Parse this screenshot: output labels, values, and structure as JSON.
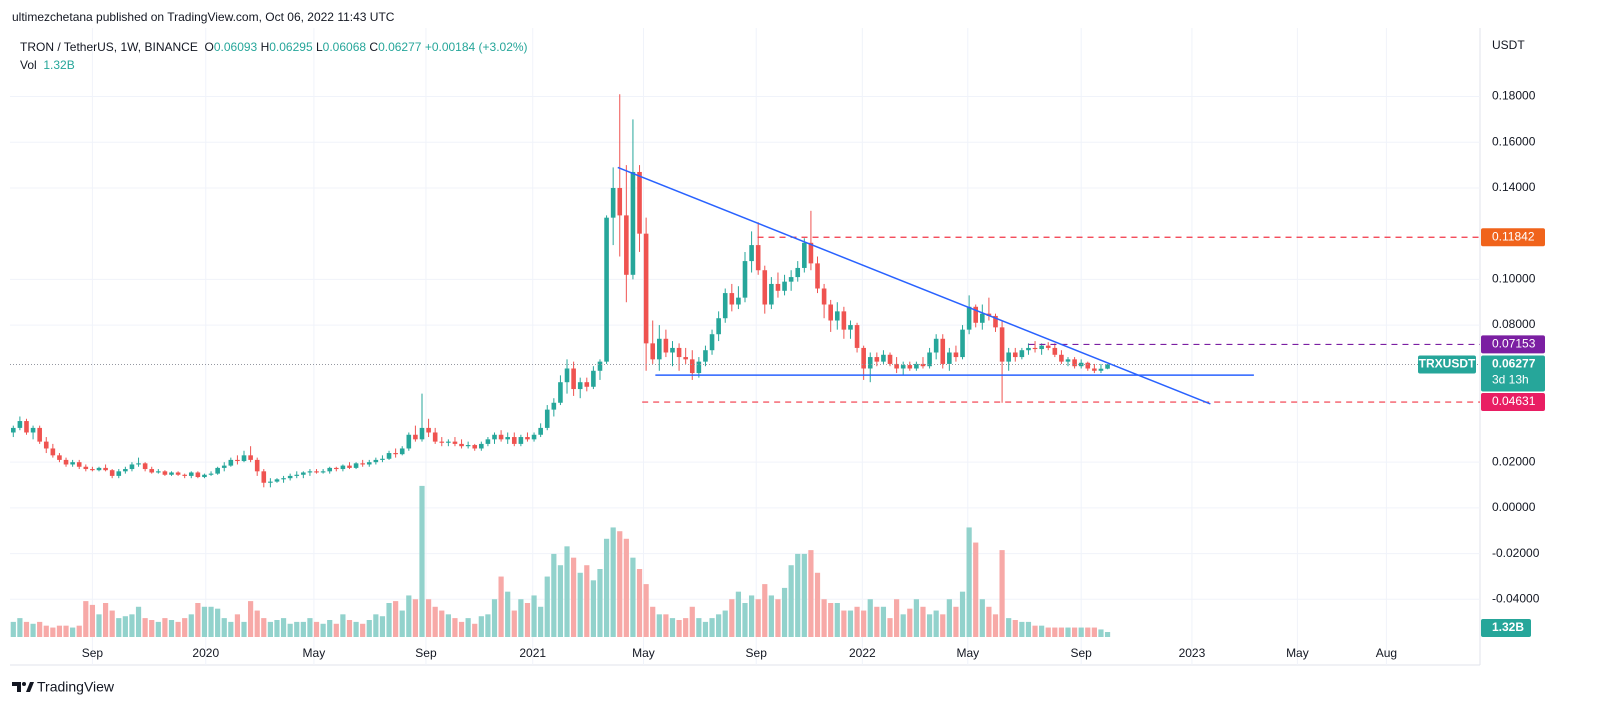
{
  "header": "ultimezchetana published on TradingView.com, Oct 06, 2022 11:43 UTC",
  "footer": "TradingView",
  "chart_data": {
    "type": "candlestick",
    "symbol_info": "TRON / TetherUS, 1W, BINANCE",
    "ohlc": [
      {
        "key": "O",
        "value": "0.06093"
      },
      {
        "key": "H",
        "value": "0.06295"
      },
      {
        "key": "L",
        "value": "0.06068"
      },
      {
        "key": "C",
        "value": "0.06277"
      }
    ],
    "change": "+0.00184 (+3.02%)",
    "volume_key": "Vol",
    "currency": "USDT",
    "up_color": "#26a69a",
    "down_color": "#ef5350",
    "volume_up_color": "#92d2cc",
    "volume_down_color": "#f7a9a7",
    "xlim": [
      -0.5,
      222.5
    ],
    "ylim": [
      -0.06,
      0.21
    ],
    "volume_ylim": [
      0,
      45
    ],
    "grid": true,
    "yticks": [
      {
        "value": 0.18,
        "label": "0.18000"
      },
      {
        "value": 0.16,
        "label": "0.16000"
      },
      {
        "value": 0.14,
        "label": "0.14000"
      },
      {
        "value": 0.1,
        "label": "0.10000"
      },
      {
        "value": 0.08,
        "label": "0.08000"
      },
      {
        "value": 0.02,
        "label": "0.02000"
      },
      {
        "value": 0,
        "label": "0.00000"
      },
      {
        "value": -0.02,
        "label": "-0.02000"
      },
      {
        "value": -0.04,
        "label": "-0.04000"
      }
    ],
    "xticks": [
      {
        "value": 12,
        "label": "Sep"
      },
      {
        "value": 29.2,
        "label": "2020"
      },
      {
        "value": 45.6,
        "label": "May"
      },
      {
        "value": 62.6,
        "label": "Sep"
      },
      {
        "value": 78.8,
        "label": "2021"
      },
      {
        "value": 95.6,
        "label": "May"
      },
      {
        "value": 112.7,
        "label": "Sep"
      },
      {
        "value": 128.8,
        "label": "2022"
      },
      {
        "value": 144.8,
        "label": "May"
      },
      {
        "value": 162,
        "label": "Sep"
      },
      {
        "value": 178.8,
        "label": "2023"
      },
      {
        "value": 194.8,
        "label": "May"
      },
      {
        "value": 208.3,
        "label": "Aug"
      }
    ],
    "candles": [
      [
        0.033,
        0.036,
        0.031,
        0.035
      ],
      [
        0.035,
        0.04,
        0.034,
        0.038
      ],
      [
        0.038,
        0.039,
        0.032,
        0.033
      ],
      [
        0.033,
        0.036,
        0.03,
        0.035
      ],
      [
        0.035,
        0.036,
        0.028,
        0.029
      ],
      [
        0.029,
        0.031,
        0.024,
        0.026
      ],
      [
        0.026,
        0.028,
        0.022,
        0.023
      ],
      [
        0.023,
        0.024,
        0.02,
        0.021
      ],
      [
        0.021,
        0.022,
        0.018,
        0.019
      ],
      [
        0.019,
        0.021,
        0.018,
        0.02
      ],
      [
        0.02,
        0.021,
        0.017,
        0.018
      ],
      [
        0.018,
        0.019,
        0.016,
        0.017
      ],
      [
        0.017,
        0.018,
        0.016,
        0.0165
      ],
      [
        0.0165,
        0.018,
        0.016,
        0.0175
      ],
      [
        0.0175,
        0.019,
        0.016,
        0.0165
      ],
      [
        0.0165,
        0.017,
        0.013,
        0.014
      ],
      [
        0.014,
        0.017,
        0.013,
        0.016
      ],
      [
        0.016,
        0.018,
        0.015,
        0.017
      ],
      [
        0.017,
        0.02,
        0.016,
        0.019
      ],
      [
        0.019,
        0.022,
        0.018,
        0.0195
      ],
      [
        0.0195,
        0.02,
        0.016,
        0.017
      ],
      [
        0.017,
        0.018,
        0.015,
        0.0155
      ],
      [
        0.0155,
        0.017,
        0.015,
        0.016
      ],
      [
        0.016,
        0.0165,
        0.014,
        0.0145
      ],
      [
        0.0145,
        0.016,
        0.014,
        0.0155
      ],
      [
        0.0155,
        0.016,
        0.014,
        0.0145
      ],
      [
        0.0145,
        0.015,
        0.013,
        0.014
      ],
      [
        0.014,
        0.016,
        0.013,
        0.0155
      ],
      [
        0.0155,
        0.016,
        0.013,
        0.0135
      ],
      [
        0.0135,
        0.015,
        0.013,
        0.0145
      ],
      [
        0.0145,
        0.016,
        0.014,
        0.015
      ],
      [
        0.015,
        0.018,
        0.0145,
        0.0175
      ],
      [
        0.0175,
        0.02,
        0.016,
        0.0185
      ],
      [
        0.0185,
        0.022,
        0.018,
        0.021
      ],
      [
        0.021,
        0.023,
        0.019,
        0.0205
      ],
      [
        0.0205,
        0.025,
        0.02,
        0.023
      ],
      [
        0.023,
        0.027,
        0.02,
        0.021
      ],
      [
        0.021,
        0.022,
        0.014,
        0.016
      ],
      [
        0.016,
        0.017,
        0.009,
        0.011
      ],
      [
        0.011,
        0.013,
        0.009,
        0.0115
      ],
      [
        0.0115,
        0.013,
        0.011,
        0.0125
      ],
      [
        0.0125,
        0.014,
        0.011,
        0.013
      ],
      [
        0.013,
        0.015,
        0.012,
        0.014
      ],
      [
        0.014,
        0.016,
        0.013,
        0.0145
      ],
      [
        0.0145,
        0.016,
        0.013,
        0.0155
      ],
      [
        0.0155,
        0.017,
        0.014,
        0.016
      ],
      [
        0.016,
        0.017,
        0.015,
        0.0155
      ],
      [
        0.0155,
        0.017,
        0.015,
        0.016
      ],
      [
        0.016,
        0.018,
        0.015,
        0.0175
      ],
      [
        0.0175,
        0.018,
        0.016,
        0.017
      ],
      [
        0.017,
        0.019,
        0.016,
        0.0185
      ],
      [
        0.0185,
        0.02,
        0.017,
        0.0175
      ],
      [
        0.0175,
        0.02,
        0.017,
        0.0195
      ],
      [
        0.0195,
        0.021,
        0.018,
        0.019
      ],
      [
        0.019,
        0.021,
        0.018,
        0.02
      ],
      [
        0.02,
        0.022,
        0.019,
        0.021
      ],
      [
        0.021,
        0.023,
        0.02,
        0.0215
      ],
      [
        0.0215,
        0.025,
        0.021,
        0.024
      ],
      [
        0.024,
        0.026,
        0.022,
        0.0235
      ],
      [
        0.0235,
        0.027,
        0.023,
        0.026
      ],
      [
        0.026,
        0.033,
        0.025,
        0.032
      ],
      [
        0.032,
        0.036,
        0.029,
        0.03
      ],
      [
        0.03,
        0.05,
        0.029,
        0.035
      ],
      [
        0.035,
        0.039,
        0.031,
        0.033
      ],
      [
        0.033,
        0.035,
        0.028,
        0.029
      ],
      [
        0.029,
        0.031,
        0.027,
        0.0285
      ],
      [
        0.0285,
        0.03,
        0.027,
        0.029
      ],
      [
        0.029,
        0.031,
        0.027,
        0.028
      ],
      [
        0.028,
        0.03,
        0.026,
        0.027
      ],
      [
        0.027,
        0.029,
        0.026,
        0.0275
      ],
      [
        0.0275,
        0.028,
        0.025,
        0.026
      ],
      [
        0.026,
        0.029,
        0.025,
        0.028
      ],
      [
        0.028,
        0.031,
        0.027,
        0.03
      ],
      [
        0.03,
        0.033,
        0.028,
        0.032
      ],
      [
        0.032,
        0.034,
        0.029,
        0.03
      ],
      [
        0.03,
        0.033,
        0.028,
        0.031
      ],
      [
        0.031,
        0.033,
        0.027,
        0.028
      ],
      [
        0.028,
        0.032,
        0.027,
        0.031
      ],
      [
        0.031,
        0.033,
        0.029,
        0.03
      ],
      [
        0.03,
        0.033,
        0.029,
        0.032
      ],
      [
        0.032,
        0.037,
        0.031,
        0.035
      ],
      [
        0.035,
        0.045,
        0.034,
        0.043
      ],
      [
        0.043,
        0.048,
        0.04,
        0.046
      ],
      [
        0.046,
        0.058,
        0.045,
        0.055
      ],
      [
        0.055,
        0.065,
        0.05,
        0.061
      ],
      [
        0.061,
        0.064,
        0.049,
        0.052
      ],
      [
        0.052,
        0.057,
        0.048,
        0.055
      ],
      [
        0.055,
        0.057,
        0.051,
        0.053
      ],
      [
        0.053,
        0.062,
        0.052,
        0.06
      ],
      [
        0.06,
        0.065,
        0.056,
        0.064
      ],
      [
        0.064,
        0.128,
        0.063,
        0.127
      ],
      [
        0.127,
        0.149,
        0.115,
        0.14
      ],
      [
        0.14,
        0.181,
        0.11,
        0.128
      ],
      [
        0.128,
        0.15,
        0.09,
        0.102
      ],
      [
        0.102,
        0.17,
        0.1,
        0.147
      ],
      [
        0.147,
        0.15,
        0.112,
        0.12
      ],
      [
        0.12,
        0.127,
        0.06,
        0.072
      ],
      [
        0.072,
        0.082,
        0.063,
        0.065
      ],
      [
        0.065,
        0.08,
        0.06,
        0.074
      ],
      [
        0.074,
        0.078,
        0.066,
        0.068
      ],
      [
        0.068,
        0.073,
        0.062,
        0.07
      ],
      [
        0.07,
        0.072,
        0.06,
        0.066
      ],
      [
        0.066,
        0.07,
        0.063,
        0.065
      ],
      [
        0.065,
        0.069,
        0.056,
        0.059
      ],
      [
        0.059,
        0.066,
        0.057,
        0.064
      ],
      [
        0.064,
        0.071,
        0.062,
        0.069
      ],
      [
        0.069,
        0.078,
        0.067,
        0.076
      ],
      [
        0.076,
        0.086,
        0.073,
        0.083
      ],
      [
        0.083,
        0.096,
        0.081,
        0.094
      ],
      [
        0.094,
        0.098,
        0.086,
        0.089
      ],
      [
        0.089,
        0.097,
        0.087,
        0.092
      ],
      [
        0.092,
        0.112,
        0.09,
        0.108
      ],
      [
        0.108,
        0.121,
        0.103,
        0.115
      ],
      [
        0.115,
        0.125,
        0.102,
        0.104
      ],
      [
        0.104,
        0.106,
        0.085,
        0.089
      ],
      [
        0.089,
        0.101,
        0.087,
        0.098
      ],
      [
        0.098,
        0.103,
        0.092,
        0.095
      ],
      [
        0.095,
        0.102,
        0.093,
        0.099
      ],
      [
        0.099,
        0.104,
        0.095,
        0.101
      ],
      [
        0.101,
        0.108,
        0.099,
        0.105
      ],
      [
        0.105,
        0.118,
        0.103,
        0.116
      ],
      [
        0.116,
        0.13,
        0.104,
        0.107
      ],
      [
        0.107,
        0.11,
        0.094,
        0.096
      ],
      [
        0.096,
        0.098,
        0.083,
        0.089
      ],
      [
        0.089,
        0.091,
        0.077,
        0.082
      ],
      [
        0.082,
        0.09,
        0.078,
        0.086
      ],
      [
        0.086,
        0.088,
        0.074,
        0.078
      ],
      [
        0.078,
        0.082,
        0.074,
        0.08
      ],
      [
        0.08,
        0.081,
        0.068,
        0.07
      ],
      [
        0.07,
        0.071,
        0.056,
        0.061
      ],
      [
        0.061,
        0.068,
        0.055,
        0.066
      ],
      [
        0.066,
        0.068,
        0.062,
        0.064
      ],
      [
        0.064,
        0.069,
        0.063,
        0.067
      ],
      [
        0.067,
        0.068,
        0.062,
        0.063
      ],
      [
        0.063,
        0.066,
        0.059,
        0.061
      ],
      [
        0.061,
        0.064,
        0.058,
        0.0625
      ],
      [
        0.0625,
        0.064,
        0.06,
        0.061
      ],
      [
        0.061,
        0.064,
        0.06,
        0.063
      ],
      [
        0.063,
        0.066,
        0.061,
        0.062
      ],
      [
        0.062,
        0.07,
        0.061,
        0.068
      ],
      [
        0.068,
        0.076,
        0.065,
        0.074
      ],
      [
        0.074,
        0.076,
        0.061,
        0.063
      ],
      [
        0.063,
        0.07,
        0.06,
        0.068
      ],
      [
        0.068,
        0.071,
        0.064,
        0.066
      ],
      [
        0.066,
        0.08,
        0.065,
        0.078
      ],
      [
        0.078,
        0.093,
        0.076,
        0.088
      ],
      [
        0.088,
        0.089,
        0.079,
        0.081
      ],
      [
        0.081,
        0.089,
        0.078,
        0.085
      ],
      [
        0.085,
        0.092,
        0.082,
        0.084
      ],
      [
        0.084,
        0.085,
        0.077,
        0.079
      ],
      [
        0.079,
        0.082,
        0.046,
        0.064
      ],
      [
        0.064,
        0.07,
        0.06,
        0.068
      ],
      [
        0.068,
        0.07,
        0.064,
        0.066
      ],
      [
        0.066,
        0.07,
        0.065,
        0.069
      ],
      [
        0.069,
        0.072,
        0.067,
        0.07
      ],
      [
        0.07,
        0.073,
        0.068,
        0.0695
      ],
      [
        0.0695,
        0.072,
        0.067,
        0.071
      ],
      [
        0.071,
        0.0725,
        0.069,
        0.07
      ],
      [
        0.07,
        0.072,
        0.066,
        0.067
      ],
      [
        0.067,
        0.069,
        0.063,
        0.064
      ],
      [
        0.064,
        0.066,
        0.062,
        0.065
      ],
      [
        0.065,
        0.066,
        0.061,
        0.062
      ],
      [
        0.062,
        0.065,
        0.061,
        0.0635
      ],
      [
        0.0635,
        0.064,
        0.06,
        0.061
      ],
      [
        0.061,
        0.063,
        0.059,
        0.06
      ],
      [
        0.06,
        0.063,
        0.059,
        0.0609
      ],
      [
        0.06093,
        0.06295,
        0.06068,
        0.06277
      ]
    ],
    "volumes": [
      4,
      5,
      4,
      3.5,
      4,
      3,
      2.5,
      3,
      3,
      2.5,
      3,
      9.5,
      8.5,
      6,
      9,
      7,
      5,
      5.5,
      6,
      8,
      5,
      4.5,
      4,
      5,
      4.5,
      4,
      5,
      6,
      9,
      8,
      8,
      7.5,
      5,
      4,
      6,
      4,
      9.5,
      7,
      5,
      4,
      4.5,
      5,
      3.5,
      4,
      4,
      5,
      4,
      3.5,
      4.5,
      3.5,
      6,
      4.5,
      4,
      3.5,
      4.5,
      6,
      5.5,
      9,
      9.5,
      7,
      11,
      10,
      40,
      10,
      8,
      7,
      6,
      5,
      4,
      5,
      3.5,
      5.5,
      6,
      10,
      16,
      12,
      7,
      10,
      9,
      11,
      8,
      16,
      22,
      19,
      24,
      21,
      17,
      19,
      15,
      18,
      26,
      29,
      28,
      26,
      21,
      18,
      14,
      8,
      6,
      6,
      5,
      4.5,
      5,
      8,
      5,
      4,
      5,
      6,
      7,
      10,
      12,
      9,
      11,
      10,
      14,
      11,
      10,
      13,
      19,
      22,
      22,
      23,
      17,
      10,
      9,
      9,
      7,
      7,
      8,
      7,
      10,
      8,
      8,
      5,
      10,
      6,
      7.5,
      10,
      8,
      6,
      7,
      6,
      10,
      8,
      12,
      29,
      25,
      10,
      8,
      6,
      23,
      5,
      4.5,
      4,
      4,
      3,
      3,
      2.5,
      2.5,
      2.5,
      2.5,
      2.5,
      2.5,
      2.5,
      2.5,
      2,
      1.32
    ],
    "volume_last": {
      "value": 1.32,
      "label": "1.32B"
    },
    "last_price": {
      "value": 0.06277,
      "symbol": "TRXUSDT",
      "countdown": "3d 13h",
      "color": "#26a69a"
    },
    "levels": [
      {
        "value": 0.11842,
        "from": 112.9,
        "color": "#f23645",
        "badge": "#f0631b",
        "style": "dashed"
      },
      {
        "value": 0.07153,
        "from": 154,
        "color": "#7b1fa2",
        "badge": "#7b1fa2",
        "style": "dashed"
      },
      {
        "value": 0.05811,
        "from": 97.4,
        "to": 188.2,
        "color": "#2962ff",
        "badge": "#7b1fa2",
        "style": "solid"
      },
      {
        "value": 0.04631,
        "from": 95.4,
        "color": "#f23645",
        "badge": "#e91e63",
        "style": "dashed"
      }
    ],
    "trendline": {
      "points": [
        [
          91.7,
          0.149
        ],
        [
          181.6,
          0.0455
        ]
      ],
      "color": "#2962ff"
    }
  }
}
